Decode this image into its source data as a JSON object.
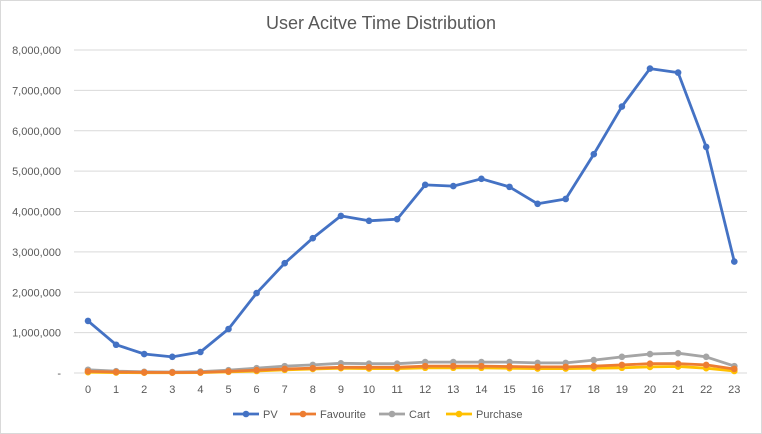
{
  "chart_data": {
    "type": "line",
    "title": "User Acitve Time Distribution",
    "xlabel": "",
    "ylabel": "",
    "categories": [
      "0",
      "1",
      "2",
      "3",
      "4",
      "5",
      "6",
      "7",
      "8",
      "9",
      "10",
      "11",
      "12",
      "13",
      "14",
      "15",
      "16",
      "17",
      "18",
      "19",
      "20",
      "21",
      "22",
      "23"
    ],
    "ylim": [
      0,
      8000000
    ],
    "ytick_values": [
      0,
      1000000,
      2000000,
      3000000,
      4000000,
      5000000,
      6000000,
      7000000,
      8000000
    ],
    "ytick_labels": [
      "-",
      "1,000,000",
      "2,000,000",
      "3,000,000",
      "4,000,000",
      "5,000,000",
      "6,000,000",
      "7,000,000",
      "8,000,000"
    ],
    "grid": true,
    "legend": "bottom",
    "series": [
      {
        "name": "PV",
        "color": "#4472C4",
        "values": [
          1290000,
          700000,
          470000,
          400000,
          520000,
          1090000,
          1980000,
          2720000,
          3340000,
          3890000,
          3770000,
          3810000,
          4660000,
          4630000,
          4810000,
          4610000,
          4190000,
          4310000,
          5420000,
          6600000,
          7540000,
          7440000,
          5600000,
          2760000
        ]
      },
      {
        "name": "Favourite",
        "color": "#ED7D31",
        "values": [
          40000,
          25000,
          15000,
          12000,
          15000,
          40000,
          70000,
          100000,
          120000,
          140000,
          140000,
          140000,
          170000,
          170000,
          170000,
          160000,
          150000,
          150000,
          170000,
          200000,
          230000,
          230000,
          200000,
          100000
        ]
      },
      {
        "name": "Cart",
        "color": "#A5A5A5",
        "values": [
          80000,
          45000,
          30000,
          25000,
          35000,
          70000,
          120000,
          170000,
          200000,
          240000,
          230000,
          230000,
          270000,
          270000,
          270000,
          270000,
          250000,
          250000,
          320000,
          400000,
          470000,
          490000,
          400000,
          170000
        ]
      },
      {
        "name": "Purchase",
        "color": "#FFC000",
        "values": [
          20000,
          10000,
          8000,
          7000,
          9000,
          30000,
          50000,
          80000,
          100000,
          120000,
          110000,
          110000,
          130000,
          130000,
          130000,
          120000,
          110000,
          110000,
          120000,
          130000,
          150000,
          160000,
          120000,
          50000
        ]
      }
    ]
  }
}
